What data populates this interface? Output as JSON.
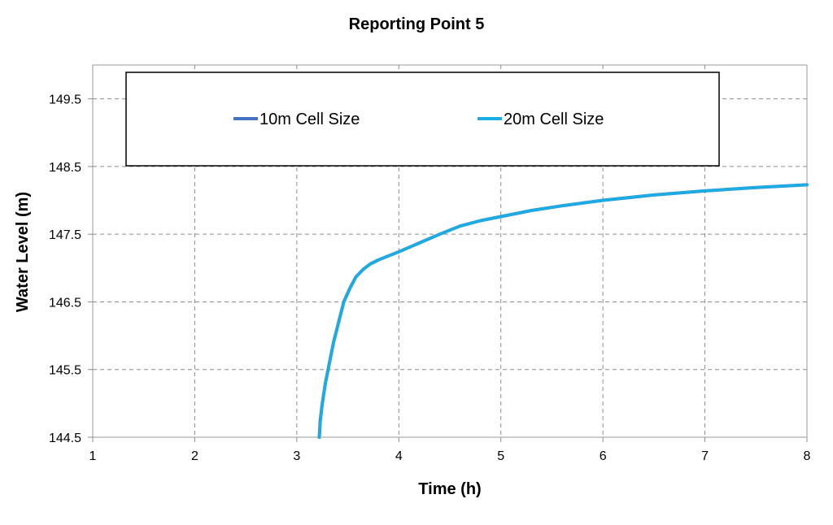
{
  "chart_data": {
    "type": "line",
    "title": "Reporting Point 5",
    "xlabel": "Time (h)",
    "ylabel": "Water Level (m)",
    "xlim": [
      1,
      8
    ],
    "ylim": [
      144.5,
      150.0
    ],
    "xticks": [
      "1",
      "2",
      "3",
      "4",
      "5",
      "6",
      "7",
      "8"
    ],
    "yticks": [
      "144.5",
      "145.5",
      "146.5",
      "147.5",
      "148.5",
      "149.5"
    ],
    "grid": true,
    "legend_position": "top",
    "series": [
      {
        "name": "10m Cell Size",
        "color": "#4472C4",
        "x": [
          3.22,
          3.23,
          3.25,
          3.28,
          3.32,
          3.36,
          3.41,
          3.46,
          3.52,
          3.58,
          3.65,
          3.72,
          3.8,
          3.9,
          4.0,
          4.2,
          4.4,
          4.6,
          4.8,
          5.0,
          5.3,
          5.6,
          6.0,
          6.5,
          7.0,
          7.5,
          8.0
        ],
        "y": [
          144.5,
          144.75,
          145.0,
          145.3,
          145.6,
          145.9,
          146.2,
          146.5,
          146.7,
          146.87,
          146.98,
          147.06,
          147.12,
          147.18,
          147.24,
          147.37,
          147.5,
          147.62,
          147.7,
          147.76,
          147.85,
          147.92,
          148.0,
          148.08,
          148.14,
          148.19,
          148.23
        ]
      },
      {
        "name": "20m Cell Size",
        "color": "#1AADE4",
        "x": [
          3.22,
          3.23,
          3.25,
          3.28,
          3.32,
          3.36,
          3.41,
          3.46,
          3.52,
          3.58,
          3.65,
          3.72,
          3.8,
          3.9,
          4.0,
          4.2,
          4.4,
          4.6,
          4.8,
          5.0,
          5.3,
          5.6,
          6.0,
          6.5,
          7.0,
          7.5,
          8.0
        ],
        "y": [
          144.5,
          144.72,
          145.0,
          145.3,
          145.6,
          145.9,
          146.2,
          146.5,
          146.7,
          146.87,
          146.98,
          147.06,
          147.12,
          147.18,
          147.24,
          147.37,
          147.5,
          147.62,
          147.7,
          147.76,
          147.85,
          147.92,
          148.0,
          148.08,
          148.14,
          148.19,
          148.23
        ]
      }
    ]
  }
}
